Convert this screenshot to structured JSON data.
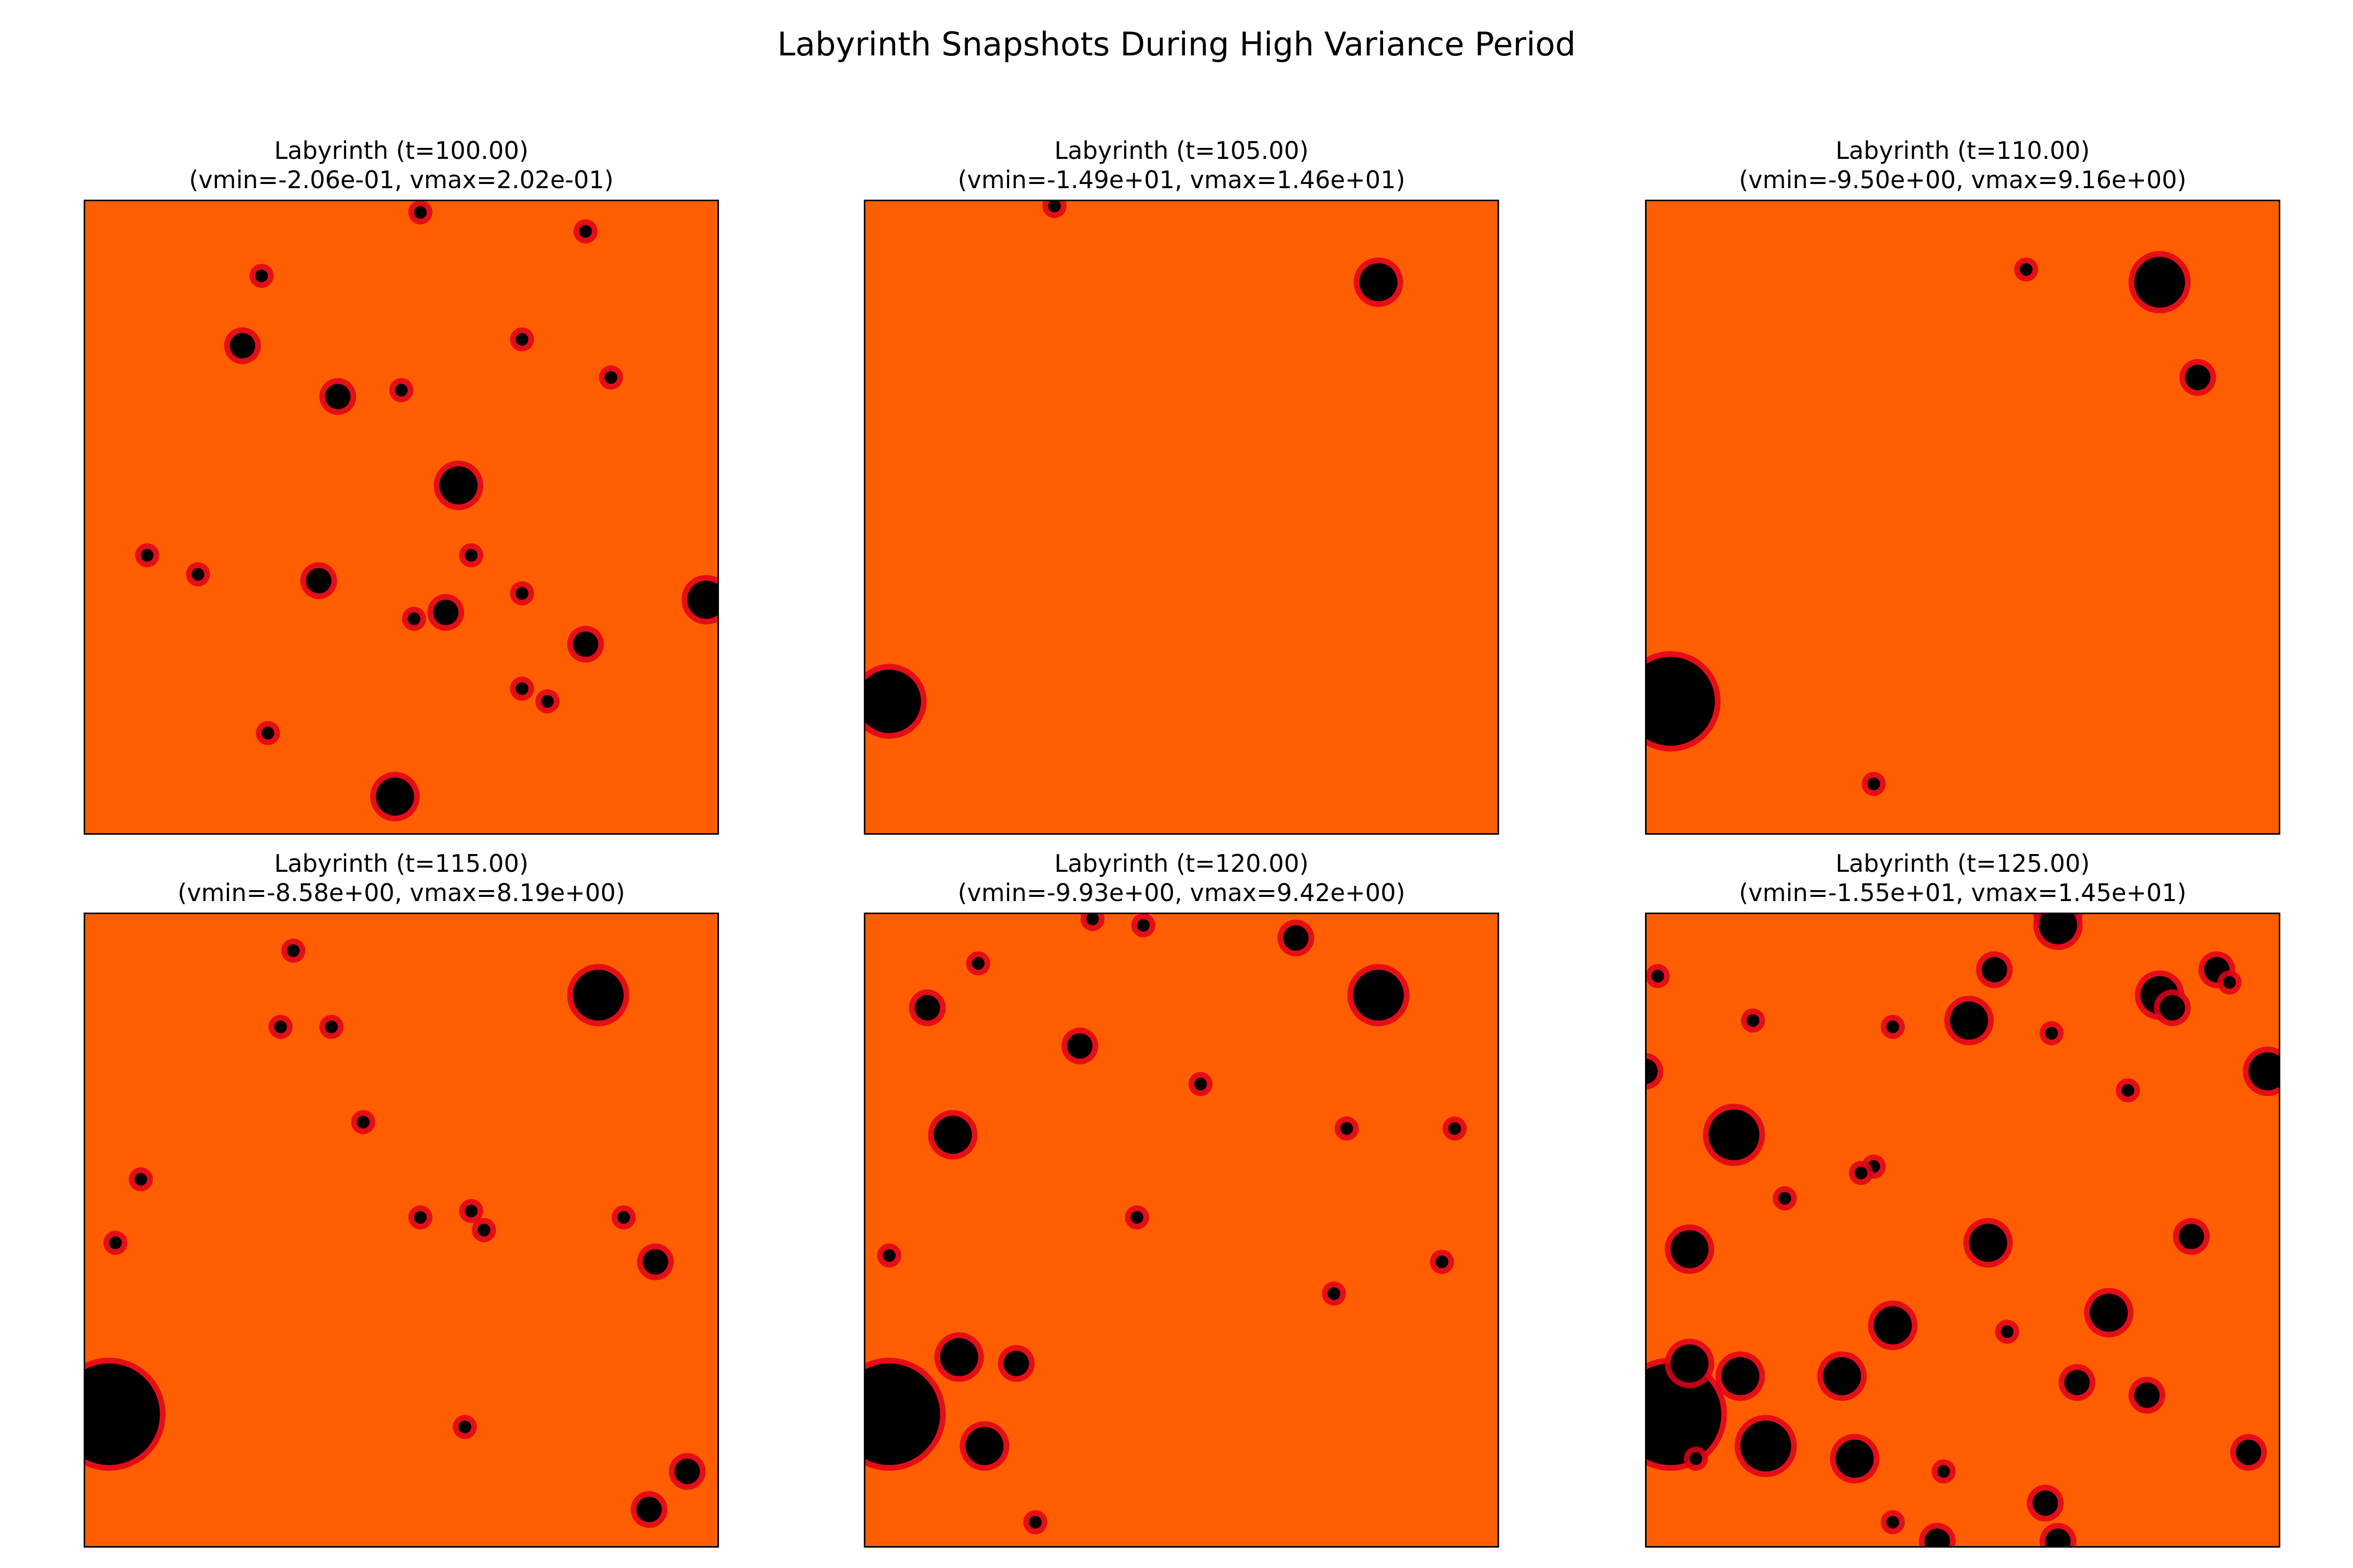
{
  "figure": {
    "title": "Labyrinth Snapshots During High Variance Period"
  },
  "colors": {
    "background": "#ff5e00",
    "dark": "#000000",
    "mid": "#e0001a",
    "frame": "#000000"
  },
  "chart_data": [
    {
      "type": "heatmap",
      "title": "Labyrinth (t=100.00)",
      "subtitle": "(vmin=-2.06e-01, vmax=2.02e-01)",
      "vmin": -0.206,
      "vmax": 0.202,
      "blobs": [
        [
          0.59,
          0.45,
          3
        ],
        [
          0.98,
          0.63,
          3
        ],
        [
          0.49,
          0.94,
          3
        ],
        [
          0.79,
          0.7,
          2
        ],
        [
          0.53,
          0.02,
          1
        ],
        [
          0.79,
          0.05,
          1
        ],
        [
          0.25,
          0.23,
          2
        ],
        [
          0.4,
          0.31,
          2
        ],
        [
          0.37,
          0.6,
          2
        ],
        [
          0.29,
          0.84,
          1
        ],
        [
          0.57,
          0.65,
          2
        ],
        [
          0.52,
          0.66,
          1
        ],
        [
          0.61,
          0.56,
          1
        ],
        [
          0.69,
          0.77,
          1
        ],
        [
          0.69,
          0.62,
          1
        ],
        [
          0.5,
          0.3,
          1
        ],
        [
          0.83,
          0.28,
          1
        ],
        [
          0.1,
          0.56,
          1
        ],
        [
          0.18,
          0.59,
          1
        ],
        [
          0.69,
          0.22,
          1
        ],
        [
          0.28,
          0.12,
          1
        ],
        [
          0.73,
          0.79,
          1
        ]
      ]
    },
    {
      "type": "heatmap",
      "title": "Labyrinth (t=105.00)",
      "subtitle": "(vmin=-1.49e+01, vmax=1.46e+01)",
      "vmin": -14.9,
      "vmax": 14.6,
      "blobs": [
        [
          0.81,
          0.13,
          3
        ],
        [
          0.04,
          0.79,
          5
        ],
        [
          0.3,
          0.01,
          1
        ]
      ]
    },
    {
      "type": "heatmap",
      "title": "Labyrinth (t=110.00)",
      "subtitle": "(vmin=-9.50e+00, vmax=9.16e+00)",
      "vmin": -9.5,
      "vmax": 9.16,
      "blobs": [
        [
          0.81,
          0.13,
          4
        ],
        [
          0.04,
          0.79,
          7
        ],
        [
          0.87,
          0.28,
          2
        ],
        [
          0.36,
          0.92,
          1
        ],
        [
          0.6,
          0.11,
          1
        ]
      ]
    },
    {
      "type": "heatmap",
      "title": "Labyrinth (t=115.00)",
      "subtitle": "(vmin=-8.58e+00, vmax=8.19e+00)",
      "vmin": -8.58,
      "vmax": 8.19,
      "blobs": [
        [
          0.81,
          0.13,
          4
        ],
        [
          0.04,
          0.79,
          8
        ],
        [
          0.33,
          0.06,
          1
        ],
        [
          0.39,
          0.18,
          1
        ],
        [
          0.31,
          0.18,
          1
        ],
        [
          0.44,
          0.33,
          1
        ],
        [
          0.09,
          0.42,
          1
        ],
        [
          0.53,
          0.48,
          1
        ],
        [
          0.63,
          0.5,
          1
        ],
        [
          0.61,
          0.47,
          1
        ],
        [
          0.9,
          0.55,
          2
        ],
        [
          0.95,
          0.88,
          2
        ],
        [
          0.89,
          0.94,
          2
        ],
        [
          0.05,
          0.52,
          1
        ],
        [
          0.6,
          0.81,
          1
        ],
        [
          0.85,
          0.48,
          1
        ]
      ]
    },
    {
      "type": "heatmap",
      "title": "Labyrinth (t=120.00)",
      "subtitle": "(vmin=-9.93e+00, vmax=9.42e+00)",
      "vmin": -9.93,
      "vmax": 9.42,
      "blobs": [
        [
          0.81,
          0.13,
          4
        ],
        [
          0.04,
          0.79,
          8
        ],
        [
          0.14,
          0.35,
          3
        ],
        [
          0.15,
          0.7,
          3
        ],
        [
          0.19,
          0.84,
          3
        ],
        [
          0.24,
          0.71,
          2
        ],
        [
          0.34,
          0.21,
          2
        ],
        [
          0.68,
          0.04,
          2
        ],
        [
          0.1,
          0.15,
          2
        ],
        [
          0.53,
          0.27,
          1
        ],
        [
          0.76,
          0.34,
          1
        ],
        [
          0.93,
          0.34,
          1
        ],
        [
          0.74,
          0.6,
          1
        ],
        [
          0.91,
          0.55,
          1
        ],
        [
          0.04,
          0.54,
          1
        ],
        [
          0.43,
          0.48,
          1
        ],
        [
          0.36,
          0.01,
          1
        ],
        [
          0.27,
          0.96,
          1
        ],
        [
          0.18,
          0.08,
          1
        ],
        [
          0.44,
          0.02,
          1
        ]
      ]
    },
    {
      "type": "heatmap",
      "title": "Labyrinth (t=125.00)",
      "subtitle": "(vmin=-1.55e+01, vmax=1.45e+01)",
      "vmin": -15.5,
      "vmax": 14.5,
      "blobs": [
        [
          0.04,
          0.79,
          8
        ],
        [
          0.81,
          0.13,
          3
        ],
        [
          0.98,
          0.25,
          3
        ],
        [
          0.0,
          0.25,
          2
        ],
        [
          0.65,
          0.0,
          3
        ],
        [
          0.14,
          0.35,
          4
        ],
        [
          0.19,
          0.84,
          4
        ],
        [
          0.33,
          0.86,
          3
        ],
        [
          0.07,
          0.53,
          3
        ],
        [
          0.39,
          0.65,
          3
        ],
        [
          0.54,
          0.52,
          3
        ],
        [
          0.73,
          0.63,
          3
        ],
        [
          0.51,
          0.17,
          3
        ],
        [
          0.55,
          0.09,
          2
        ],
        [
          0.9,
          0.09,
          2
        ],
        [
          0.86,
          0.51,
          2
        ],
        [
          0.79,
          0.76,
          2
        ],
        [
          0.07,
          0.71,
          3
        ],
        [
          0.15,
          0.73,
          3
        ],
        [
          0.31,
          0.73,
          3
        ],
        [
          0.68,
          0.74,
          2
        ],
        [
          0.65,
          0.02,
          3
        ],
        [
          0.65,
          0.99,
          2
        ],
        [
          0.46,
          0.99,
          2
        ],
        [
          0.63,
          0.93,
          2
        ],
        [
          0.02,
          0.1,
          1
        ],
        [
          0.17,
          0.17,
          1
        ],
        [
          0.36,
          0.4,
          1
        ],
        [
          0.47,
          0.88,
          1
        ],
        [
          0.57,
          0.66,
          1
        ],
        [
          0.64,
          0.19,
          1
        ],
        [
          0.76,
          0.28,
          1
        ],
        [
          0.92,
          0.11,
          1
        ],
        [
          0.95,
          0.85,
          2
        ],
        [
          0.39,
          0.96,
          1
        ],
        [
          0.22,
          0.45,
          1
        ],
        [
          0.08,
          0.86,
          1
        ],
        [
          0.39,
          0.18,
          1
        ],
        [
          0.34,
          0.41,
          1
        ],
        [
          0.83,
          0.15,
          2
        ]
      ]
    }
  ]
}
